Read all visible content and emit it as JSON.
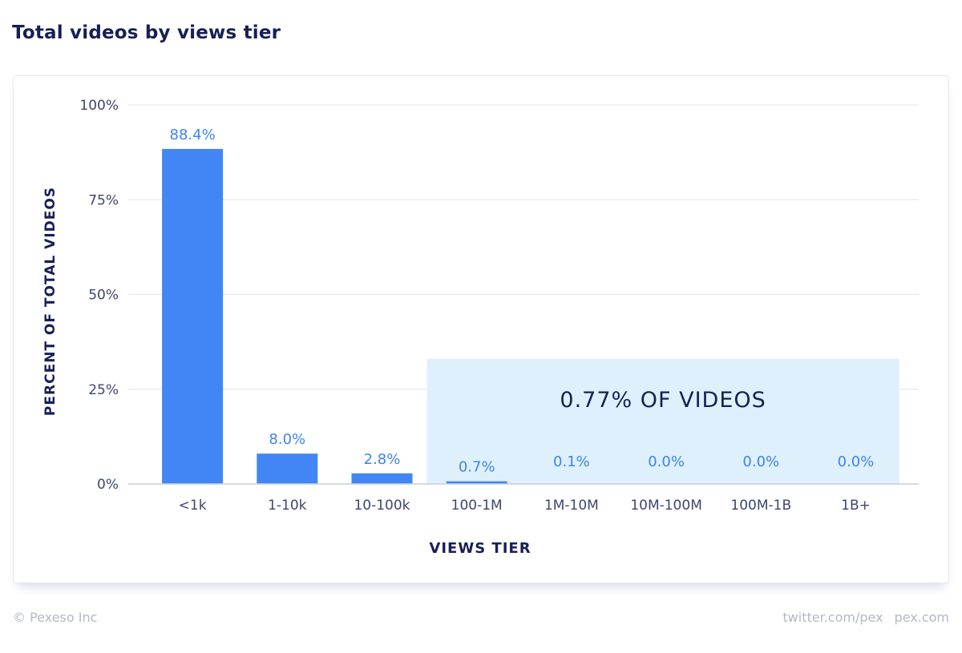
{
  "title": "Total videos by views tier",
  "footer": {
    "copyright": "© Pexeso Inc",
    "twitter": "twitter.com/pex",
    "site": "pex.com"
  },
  "colors": {
    "bar": "#4285f4",
    "label": "#3d84f2",
    "highlight": "#dff0fd",
    "text": "#172055",
    "tick": "#3d4670",
    "grid": "#e7eaf2"
  },
  "chart_data": {
    "type": "bar",
    "categories": [
      "<1k",
      "1-10k",
      "10-100k",
      "100-1M",
      "1M-10M",
      "10M-100M",
      "100M-1B",
      "1B+"
    ],
    "values": [
      88.4,
      8.0,
      2.8,
      0.7,
      0.1,
      0.0,
      0.0,
      0.0
    ],
    "value_labels": [
      "88.4%",
      "8.0%",
      "2.8%",
      "0.7%",
      "0.1%",
      "0.0%",
      "0.0%",
      "0.0%"
    ],
    "xlabel": "VIEWS TIER",
    "ylabel": "PERCENT OF TOTAL VIDEOS",
    "ylim": [
      0,
      100
    ],
    "yticks": [
      0,
      25,
      50,
      75,
      100
    ],
    "ytick_labels": [
      "0%",
      "25%",
      "50%",
      "75%",
      "100%"
    ],
    "grid": true,
    "annotation": {
      "text": "0.77% OF VIDEOS",
      "from_category": 3,
      "to_category": 7,
      "top_value": 33
    }
  }
}
